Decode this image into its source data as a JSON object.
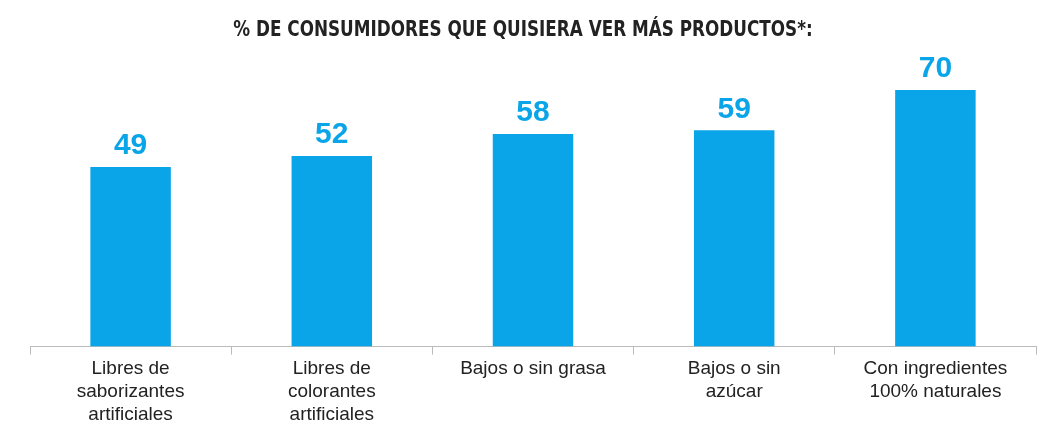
{
  "chart_data": {
    "type": "bar",
    "title": "% DE CONSUMIDORES QUE QUISIERA VER MÁS PRODUCTOS*:",
    "categories": [
      "Libres de saborizantes artificiales",
      "Libres de colorantes artificiales",
      "Bajos o sin grasa",
      "Bajos o sin azúcar",
      "Con ingredientes 100% naturales"
    ],
    "values": [
      49,
      52,
      58,
      59,
      70
    ],
    "color": "#0aa5e8",
    "data_labels": true,
    "legend": false,
    "tick_labels": "x"
  }
}
